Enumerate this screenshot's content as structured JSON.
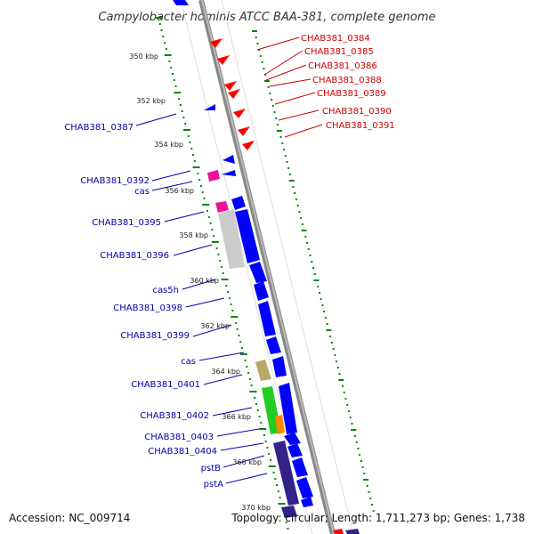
{
  "title": "Campylobacter hominis ATCC BAA-381, complete genome",
  "footer": {
    "accession": "Accession: NC_009714",
    "topology": "Topology: circular; Length: 1,711,273 bp; Genes: 1,738"
  },
  "colors": {
    "forward_label": "#cc0000",
    "reverse_label": "#0000aa",
    "cds_forward": "#0000ff",
    "cds_reverse": "#ff0000",
    "tick": "#008800",
    "backbone": "#888888"
  },
  "scale_labels": [
    {
      "kbp": 350,
      "text": "350 kbp"
    },
    {
      "kbp": 352,
      "text": "352 kbp"
    },
    {
      "kbp": 354,
      "text": "354 kbp"
    },
    {
      "kbp": 356,
      "text": "356 kbp"
    },
    {
      "kbp": 358,
      "text": "358 kbp"
    },
    {
      "kbp": 360,
      "text": "360 kbp"
    },
    {
      "kbp": 362,
      "text": "362 kbp"
    },
    {
      "kbp": 364,
      "text": "364 kbp"
    },
    {
      "kbp": 366,
      "text": "366 kbp"
    },
    {
      "kbp": 368,
      "text": "368 kbp"
    },
    {
      "kbp": 370,
      "text": "370 kbp"
    }
  ],
  "right_labels": [
    "CHAB381_0384",
    "CHAB381_0385",
    "CHAB381_0386",
    "CHAB381_0388",
    "CHAB381_0389",
    "CHAB381_0390",
    "CHAB381_0391"
  ],
  "left_labels": [
    "CHAB381_0387",
    "CHAB381_0392",
    "cas",
    "CHAB381_0395",
    "CHAB381_0396",
    "cas5h",
    "CHAB381_0398",
    "CHAB381_0399",
    "cas",
    "CHAB381_0401",
    "CHAB381_0402",
    "CHAB381_0403",
    "CHAB381_0404",
    "pstB",
    "pstA"
  ]
}
